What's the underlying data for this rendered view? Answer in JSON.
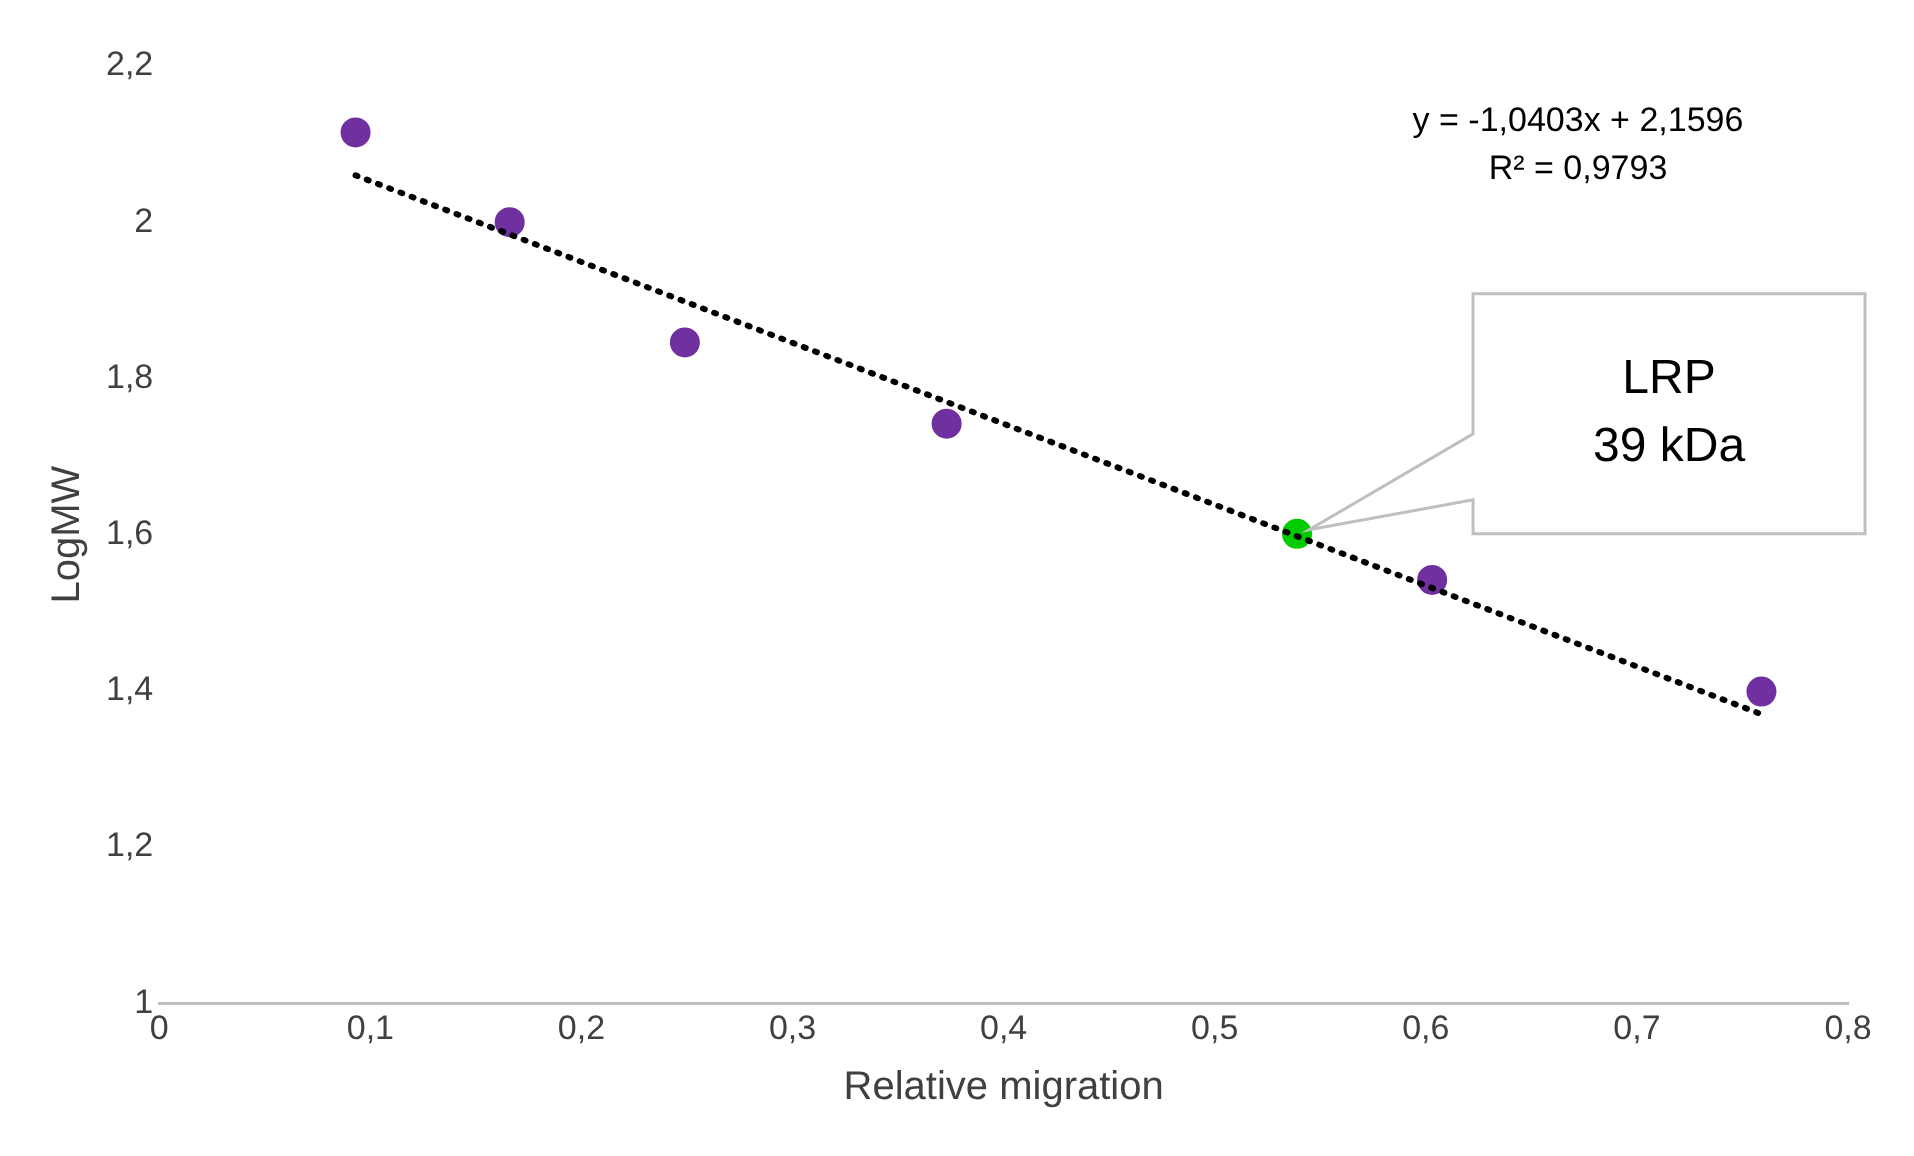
{
  "chart_data": {
    "type": "scatter",
    "xlabel": "Relative migration",
    "ylabel": "LogMW",
    "series": [
      {
        "type": "scatter",
        "x": [
          0.093,
          0.166,
          0.249,
          0.373,
          0.539,
          0.603,
          0.759
        ],
        "values": [
          2.115,
          2.0,
          1.846,
          1.742,
          1.601,
          1.542,
          1.399
        ],
        "colors": [
          "#7030a0",
          "#7030a0",
          "#7030a0",
          "#7030a0",
          "#00cc00",
          "#7030a0",
          "#7030a0"
        ],
        "marker": "circle"
      },
      {
        "type": "line",
        "x": [
          0.093,
          0.759
        ],
        "values": [
          2.06,
          1.37
        ],
        "color": "#000000",
        "line_style": "dotted",
        "marker": "none"
      }
    ],
    "xlim": [
      0,
      0.8
    ],
    "xticks": [
      0,
      {
        "value": 0.1,
        "label": "0,1"
      },
      {
        "value": 0.2,
        "label": "0,2"
      },
      {
        "value": 0.3,
        "label": "0,3"
      },
      {
        "value": 0.4,
        "label": "0,4"
      },
      {
        "value": 0.5,
        "label": "0,5"
      },
      {
        "value": 0.6,
        "label": "0,6"
      },
      {
        "value": 0.7,
        "label": "0,7"
      },
      {
        "value": 0.8,
        "label": "0,8"
      }
    ],
    "ylim": [
      1,
      2.2
    ],
    "yticks": [
      1,
      {
        "value": 1.2,
        "label": "1,2"
      },
      {
        "value": 1.4,
        "label": "1,4"
      },
      {
        "value": 1.6,
        "label": "1,6"
      },
      {
        "value": 1.8,
        "label": "1,8"
      },
      2,
      {
        "value": 2.2,
        "label": "2,2"
      }
    ],
    "annotations": [
      "y = -1,0403x + 2,1596",
      "R² = 0,9793",
      "LRP\n39 kDa"
    ],
    "grid": false,
    "legend": false
  }
}
